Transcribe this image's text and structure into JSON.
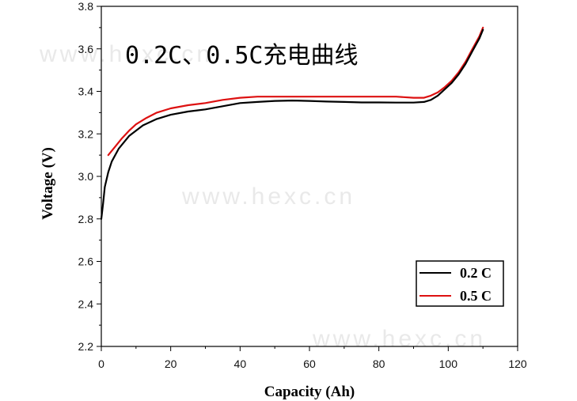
{
  "chart_data": {
    "type": "line",
    "title": "0.2C、0.5C充电曲线",
    "xlabel": "Capacity (Ah)",
    "ylabel": "Voltage (V)",
    "xlim": [
      0,
      120
    ],
    "ylim": [
      2.2,
      3.8
    ],
    "xticks": [
      0,
      20,
      40,
      60,
      80,
      100,
      120
    ],
    "yticks": [
      2.2,
      2.4,
      2.6,
      2.8,
      3.0,
      3.2,
      3.4,
      3.6,
      3.8
    ],
    "xtick_labels": [
      "0",
      "20",
      "40",
      "60",
      "80",
      "100",
      "120"
    ],
    "ytick_labels": [
      "2.2",
      "2.4",
      "2.6",
      "2.8",
      "3.0",
      "3.2",
      "3.4",
      "3.6",
      "3.8"
    ],
    "grid": false,
    "legend_position": "bottom-right",
    "watermark": "www.hexc.cn",
    "series": [
      {
        "name": "0.2 C",
        "color": "#000000",
        "points": [
          [
            0,
            2.8
          ],
          [
            0.5,
            2.87
          ],
          [
            1,
            2.95
          ],
          [
            2,
            3.02
          ],
          [
            3,
            3.07
          ],
          [
            5,
            3.13
          ],
          [
            8,
            3.19
          ],
          [
            12,
            3.24
          ],
          [
            16,
            3.27
          ],
          [
            20,
            3.29
          ],
          [
            25,
            3.305
          ],
          [
            30,
            3.315
          ],
          [
            35,
            3.33
          ],
          [
            40,
            3.345
          ],
          [
            45,
            3.35
          ],
          [
            50,
            3.355
          ],
          [
            55,
            3.357
          ],
          [
            60,
            3.355
          ],
          [
            65,
            3.352
          ],
          [
            70,
            3.35
          ],
          [
            75,
            3.348
          ],
          [
            80,
            3.348
          ],
          [
            85,
            3.347
          ],
          [
            90,
            3.347
          ],
          [
            93,
            3.35
          ],
          [
            95,
            3.36
          ],
          [
            97,
            3.38
          ],
          [
            99,
            3.41
          ],
          [
            101,
            3.44
          ],
          [
            103,
            3.48
          ],
          [
            105,
            3.53
          ],
          [
            107,
            3.59
          ],
          [
            109,
            3.65
          ],
          [
            110,
            3.69
          ]
        ]
      },
      {
        "name": "0.5 C",
        "color": "#dd1111",
        "points": [
          [
            2,
            3.1
          ],
          [
            4,
            3.14
          ],
          [
            6,
            3.18
          ],
          [
            8,
            3.215
          ],
          [
            10,
            3.245
          ],
          [
            13,
            3.275
          ],
          [
            16,
            3.3
          ],
          [
            20,
            3.32
          ],
          [
            25,
            3.335
          ],
          [
            30,
            3.345
          ],
          [
            35,
            3.36
          ],
          [
            40,
            3.37
          ],
          [
            45,
            3.375
          ],
          [
            50,
            3.375
          ],
          [
            55,
            3.375
          ],
          [
            60,
            3.375
          ],
          [
            65,
            3.375
          ],
          [
            70,
            3.375
          ],
          [
            75,
            3.375
          ],
          [
            80,
            3.375
          ],
          [
            85,
            3.375
          ],
          [
            90,
            3.37
          ],
          [
            93,
            3.37
          ],
          [
            95,
            3.38
          ],
          [
            97,
            3.395
          ],
          [
            99,
            3.42
          ],
          [
            101,
            3.45
          ],
          [
            103,
            3.49
          ],
          [
            105,
            3.54
          ],
          [
            107,
            3.6
          ],
          [
            109,
            3.66
          ],
          [
            110,
            3.7
          ]
        ]
      }
    ]
  }
}
